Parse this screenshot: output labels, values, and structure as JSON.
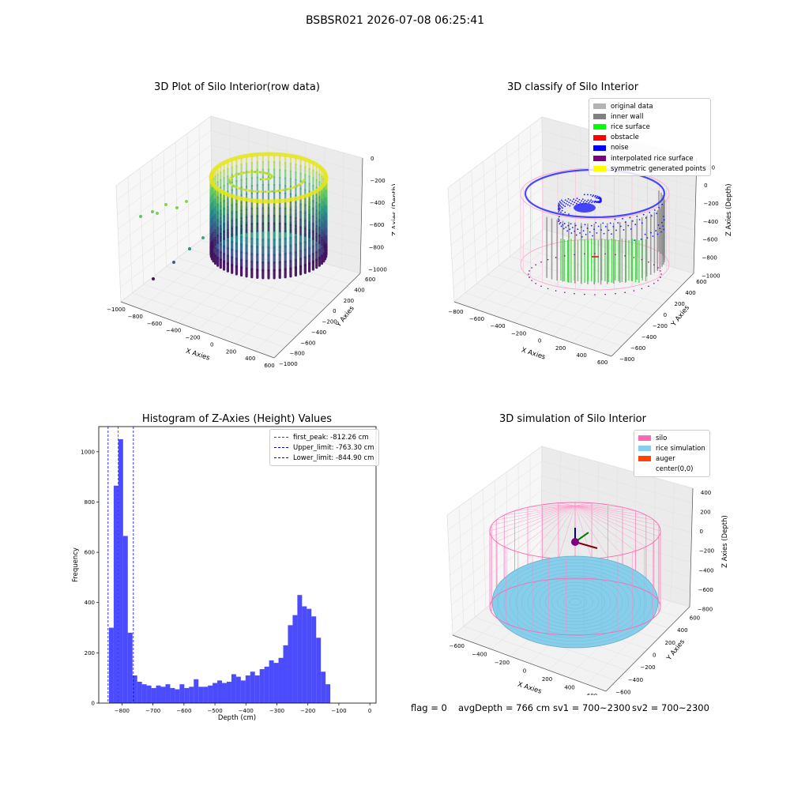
{
  "suptitle": "BSBSR021 2026-07-08 06:25:41",
  "status": {
    "flag": "flag = 0",
    "avgDepth": "avgDepth = 766 cm",
    "sv1": "sv1 = 700~2300",
    "sv2": "sv2 = 700~2300"
  },
  "chart_data": [
    {
      "type": "scatter",
      "title": "3D Plot of Silo Interior(row data)",
      "xlabel": "X Axies",
      "ylabel": "Y Axies",
      "zlabel": "Z Axies (Depth)",
      "x_ticks": [
        "−1000",
        "−800",
        "−600",
        "−400",
        "−200",
        "0",
        "200",
        "400",
        "600"
      ],
      "y_ticks": [
        "−1000",
        "−800",
        "−600",
        "−400",
        "−200",
        "0",
        "200",
        "400",
        "600"
      ],
      "z_ticks": [
        "0",
        "−200",
        "−400",
        "−600",
        "−800",
        "−1000"
      ],
      "xlim": [
        -1000,
        600
      ],
      "ylim": [
        -1000,
        600
      ],
      "zlim": [
        -1100,
        0
      ],
      "colormap": "viridis"
    },
    {
      "type": "scatter",
      "title": "3D classify of Silo Interior",
      "xlabel": "X Axies",
      "ylabel": "Y Axies",
      "zlabel": "Z Axies (Depth)",
      "x_ticks": [
        "−800",
        "−600",
        "−400",
        "−200",
        "0",
        "200",
        "400",
        "600"
      ],
      "y_ticks": [
        "−800",
        "−600",
        "−400",
        "−200",
        "0",
        "200",
        "400",
        "600"
      ],
      "z_ticks": [
        "200",
        "0",
        "−200",
        "−400",
        "−600",
        "−800",
        "−1000"
      ],
      "legend": [
        {
          "label": "original data",
          "color": "#b3b3b3"
        },
        {
          "label": "inner wall",
          "color": "#808080"
        },
        {
          "label": "rice surface",
          "color": "#00ff00"
        },
        {
          "label": "obstacle",
          "color": "#ff0000"
        },
        {
          "label": "noise",
          "color": "#0000ff"
        },
        {
          "label": "interpolated rice surface",
          "color": "#800080"
        },
        {
          "label": "symmetric generated points",
          "color": "#ffff00"
        }
      ]
    },
    {
      "type": "bar",
      "title": "Histogram of Z-Axies (Height) Values",
      "xlabel": "Depth (cm)",
      "ylabel": "Frequency",
      "xlim": [
        -850,
        0
      ],
      "ylim": [
        0,
        1100
      ],
      "x_ticks": [
        -800,
        -700,
        -600,
        -500,
        -400,
        -300,
        -200,
        -100,
        0
      ],
      "y_ticks": [
        0,
        200,
        400,
        600,
        800,
        1000
      ],
      "bar_color": "#0000ff",
      "bin_start": -842,
      "bin_width": 15.2,
      "values": [
        300,
        865,
        1050,
        665,
        280,
        110,
        85,
        75,
        70,
        60,
        70,
        65,
        75,
        60,
        55,
        75,
        60,
        65,
        95,
        65,
        65,
        70,
        80,
        90,
        80,
        85,
        115,
        105,
        90,
        110,
        125,
        110,
        135,
        145,
        170,
        160,
        180,
        230,
        310,
        350,
        430,
        385,
        375,
        345,
        260,
        125,
        75
      ],
      "vlines": [
        {
          "label": "first_peak: -812.26 cm",
          "x": -812.26,
          "color": "#ff0000"
        },
        {
          "label": "Upper_limit: -763.30 cm",
          "x": -763.3,
          "color": "#0000ff"
        },
        {
          "label": "Lower_limit: -844.90 cm",
          "x": -844.9,
          "color": "#0000ff"
        }
      ]
    },
    {
      "type": "scatter",
      "title": "3D simulation of Silo Interior",
      "xlabel": "X Axies",
      "ylabel": "Y Axies",
      "zlabel": "Z Axies (Depth)",
      "x_ticks": [
        "−600",
        "−400",
        "−200",
        "0",
        "200",
        "400",
        "600"
      ],
      "y_ticks": [
        "−600",
        "−400",
        "−200",
        "0",
        "200",
        "400",
        "600"
      ],
      "z_ticks": [
        "400",
        "200",
        "0",
        "−200",
        "−400",
        "−600",
        "−800"
      ],
      "legend": [
        {
          "label": "silo",
          "color": "#ff69b4"
        },
        {
          "label": "rice simulation",
          "color": "#87ceeb"
        },
        {
          "label": "auger",
          "color": "#ff4500"
        },
        {
          "label": "center(0,0)",
          "color": "#ffffff"
        }
      ]
    }
  ]
}
